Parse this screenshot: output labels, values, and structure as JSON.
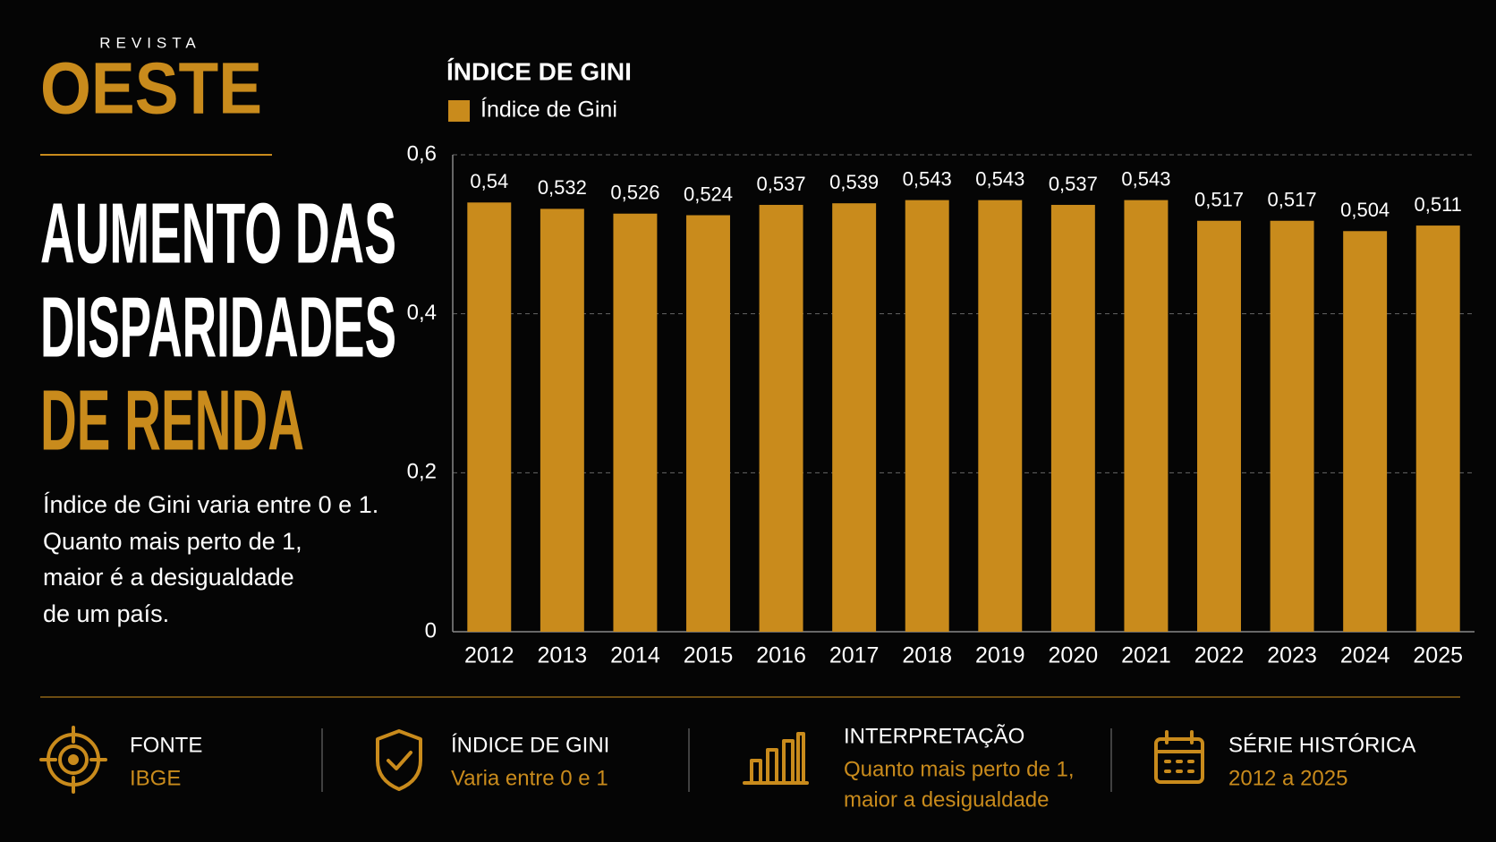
{
  "brand": {
    "kicker": "REVISTA",
    "name": "OESTE"
  },
  "headline": {
    "line1": "AUMENTO DAS",
    "line2": "DISPARIDADES",
    "line3": "DE RENDA"
  },
  "description": [
    "Índice de Gini varia entre 0 e 1.",
    "Quanto mais perto de 1,",
    "maior é a desigualdade",
    "de um país."
  ],
  "chart_data": {
    "type": "bar",
    "title": "ÍNDICE DE GINI",
    "categories": [
      "2012",
      "2013",
      "2014",
      "2015",
      "2016",
      "2017",
      "2018",
      "2019",
      "2020",
      "2021",
      "2022",
      "2023",
      "2024",
      "2025"
    ],
    "series": [
      {
        "name": "Índice de Gini",
        "color": "#c98b1c",
        "values": [
          0.54,
          0.532,
          0.526,
          0.524,
          0.537,
          0.539,
          0.543,
          0.543,
          0.537,
          0.543,
          0.517,
          0.517,
          0.504,
          0.511
        ],
        "value_labels": [
          "0,54",
          "0,532",
          "0,526",
          "0,524",
          "0,537",
          "0,539",
          "0,543",
          "0,543",
          "0,537",
          "0,543",
          "0,517",
          "0,517",
          "0,504",
          "0,511"
        ]
      }
    ],
    "ylim": [
      0,
      0.6
    ],
    "yticks": [
      0,
      {
        "value": 0.2,
        "label": "0,2"
      },
      {
        "value": 0.4,
        "label": "0,4"
      },
      {
        "value": 0.6,
        "label": "0,6"
      }
    ],
    "grid": true
  },
  "footer": {
    "items": [
      {
        "title": "FONTE",
        "lines": [
          "IBGE"
        ]
      },
      {
        "title": "ÍNDICE DE GINI",
        "lines": [
          "Varia entre 0 e 1"
        ]
      },
      {
        "title": "INTERPRETAÇÃO",
        "lines": [
          "Quanto mais perto de 1,",
          "maior a desigualdade"
        ]
      },
      {
        "title": "SÉRIE HISTÓRICA",
        "lines": [
          "2012 a 2025"
        ]
      }
    ]
  }
}
